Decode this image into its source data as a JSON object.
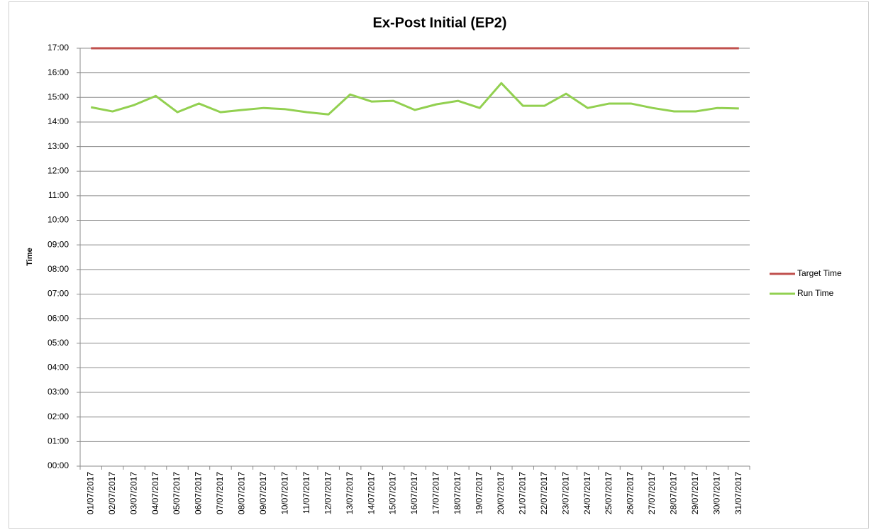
{
  "chart_data": {
    "type": "line",
    "title": "Ex-Post Initial (EP2)",
    "y_label": "Time",
    "categories": [
      "01/07/2017",
      "02/07/2017",
      "03/07/2017",
      "04/07/2017",
      "05/07/2017",
      "06/07/2017",
      "07/07/2017",
      "08/07/2017",
      "09/07/2017",
      "10/07/2017",
      "11/07/2017",
      "12/07/2017",
      "13/07/2017",
      "14/07/2017",
      "15/07/2017",
      "16/07/2017",
      "17/07/2017",
      "18/07/2017",
      "19/07/2017",
      "20/07/2017",
      "21/07/2017",
      "22/07/2017",
      "23/07/2017",
      "24/07/2017",
      "25/07/2017",
      "26/07/2017",
      "27/07/2017",
      "28/07/2017",
      "29/07/2017",
      "30/07/2017",
      "31/07/2017"
    ],
    "series": [
      {
        "name": "Target Time",
        "color": "#c0504d",
        "values": [
          17,
          17,
          17,
          17,
          17,
          17,
          17,
          17,
          17,
          17,
          17,
          17,
          17,
          17,
          17,
          17,
          17,
          17,
          17,
          17,
          17,
          17,
          17,
          17,
          17,
          17,
          17,
          17,
          17,
          17,
          17
        ]
      },
      {
        "name": "Run Time",
        "color": "#92d050",
        "values": [
          14.6,
          14.43,
          14.69,
          15.06,
          14.4,
          14.75,
          14.4,
          14.49,
          14.57,
          14.52,
          14.4,
          14.31,
          15.12,
          14.83,
          14.86,
          14.49,
          14.72,
          14.86,
          14.57,
          15.58,
          14.66,
          14.66,
          15.15,
          14.57,
          14.75,
          14.75,
          14.57,
          14.43,
          14.43,
          14.57,
          14.55
        ]
      }
    ],
    "ylim": [
      0,
      17
    ],
    "yticks": [
      {
        "value": 0,
        "label": "00:00"
      },
      {
        "value": 1,
        "label": "01:00"
      },
      {
        "value": 2,
        "label": "02:00"
      },
      {
        "value": 3,
        "label": "03:00"
      },
      {
        "value": 4,
        "label": "04:00"
      },
      {
        "value": 5,
        "label": "05:00"
      },
      {
        "value": 6,
        "label": "06:00"
      },
      {
        "value": 7,
        "label": "07:00"
      },
      {
        "value": 8,
        "label": "08:00"
      },
      {
        "value": 9,
        "label": "09:00"
      },
      {
        "value": 10,
        "label": "10:00"
      },
      {
        "value": 11,
        "label": "11:00"
      },
      {
        "value": 12,
        "label": "12:00"
      },
      {
        "value": 13,
        "label": "13:00"
      },
      {
        "value": 14,
        "label": "14:00"
      },
      {
        "value": 15,
        "label": "15:00"
      },
      {
        "value": 16,
        "label": "16:00"
      },
      {
        "value": 17,
        "label": "17:00"
      }
    ],
    "grid": true,
    "legend": "right"
  }
}
